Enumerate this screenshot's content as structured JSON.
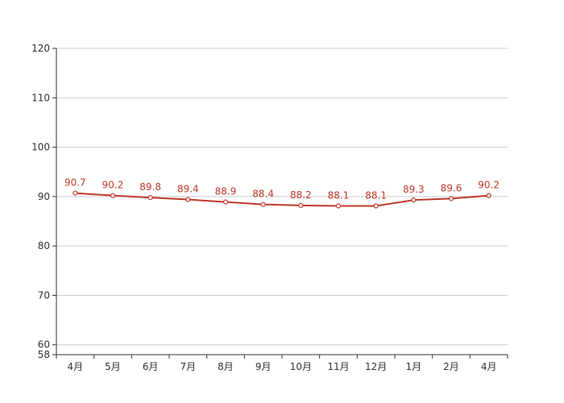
{
  "chart_data": {
    "type": "line",
    "title": "",
    "xlabel": "",
    "ylabel": "",
    "categories": [
      "4月",
      "5月",
      "6月",
      "7月",
      "8月",
      "9月",
      "10月",
      "11月",
      "12月",
      "1月",
      "2月",
      "4月"
    ],
    "series": [
      {
        "values": [
          90.7,
          90.2,
          89.8,
          89.4,
          88.9,
          88.4,
          88.2,
          88.1,
          88.1,
          89.3,
          89.6,
          90.2
        ],
        "color": "#c0392b",
        "data_labels": [
          "90.7",
          "90.2",
          "89.8",
          "89.4",
          "88.9",
          "88.4",
          "88.2",
          "88.1",
          "88.1",
          "89.3",
          "89.6",
          "90.2"
        ]
      }
    ],
    "ylim": [
      58,
      120
    ],
    "yticks": [
      58,
      60,
      70,
      80,
      90,
      100,
      110,
      120
    ],
    "ytick_labels": [
      "58",
      "60",
      "70",
      "80",
      "90",
      "100",
      "110",
      "120"
    ],
    "grid": true,
    "legend": "none",
    "colors": {
      "axis": "#333333",
      "grid": "#cccccc",
      "line": "#c0392b"
    }
  }
}
